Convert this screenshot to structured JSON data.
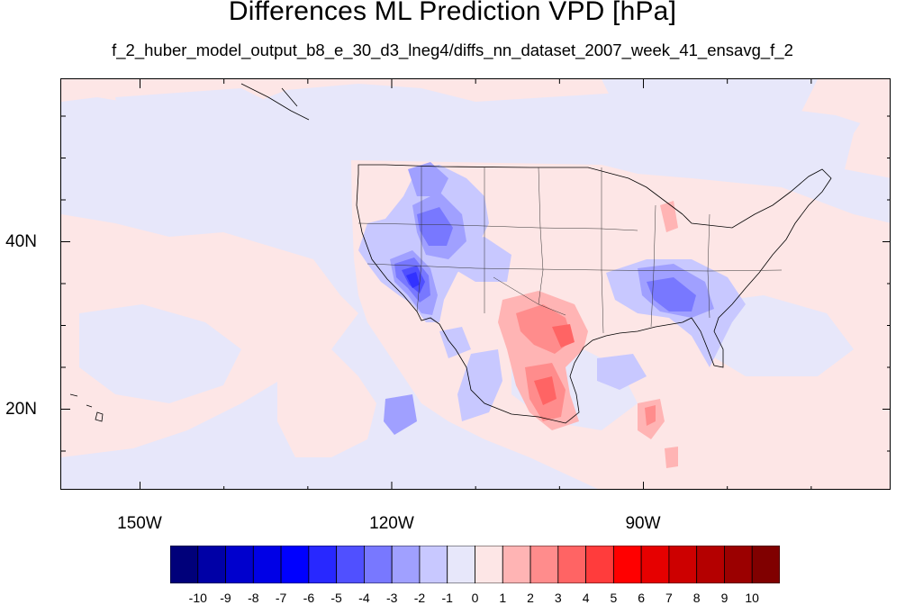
{
  "title": "Differences ML Prediction VPD [hPa]",
  "subtitle": "f_2_huber_model_output_b8_e_30_d3_lneg4/diffs_nn_dataset_2007_week_41_ensavg_f_2",
  "map": {
    "ocean_color": "#e7e7fa",
    "land_outline_color": "#000000",
    "lat_labels": [
      "40N",
      "20N"
    ],
    "lon_labels": [
      "150W",
      "120W",
      "90W"
    ]
  },
  "colorbar": {
    "colors": [
      "#00007a",
      "#0000a6",
      "#0000cd",
      "#0000e6",
      "#0000ff",
      "#2828ff",
      "#5050ff",
      "#7878ff",
      "#a0a0ff",
      "#c8c8ff",
      "#e7e7fa",
      "#fde6e6",
      "#ffb4b4",
      "#ff8c8c",
      "#ff6464",
      "#ff3c3c",
      "#ff0000",
      "#e60000",
      "#cd0000",
      "#b40000",
      "#9b0000",
      "#800000"
    ],
    "labels": [
      "-10",
      "-9",
      "-8",
      "-7",
      "-6",
      "-5",
      "-4",
      "-3",
      "-2",
      "-1",
      "0",
      "1",
      "2",
      "3",
      "4",
      "5",
      "6",
      "7",
      "8",
      "9",
      "10"
    ]
  }
}
